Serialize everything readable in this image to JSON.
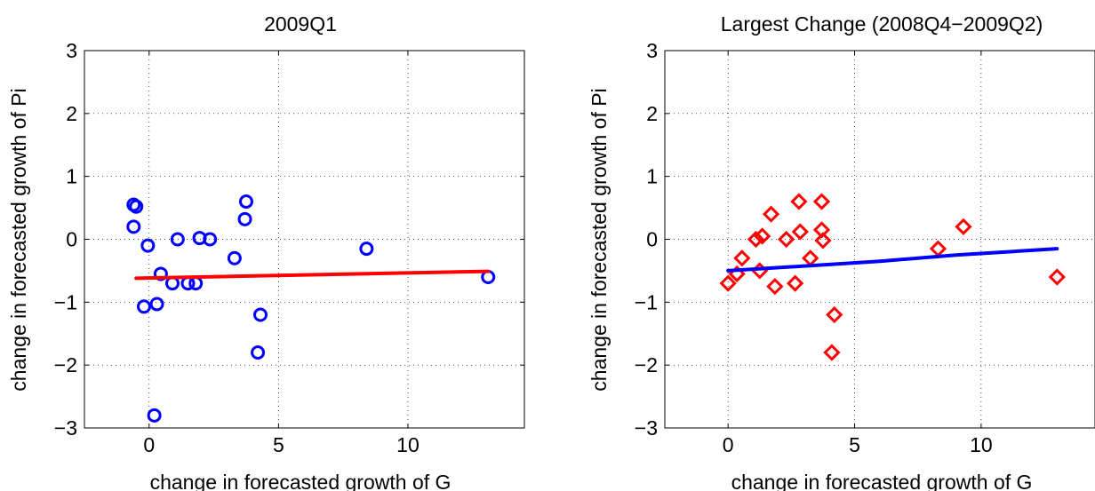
{
  "chart_data": [
    {
      "type": "scatter",
      "title": "2009Q1",
      "xlabel": "change in forecasted growth of G",
      "ylabel": "change in forecasted growth of Pi",
      "xlim": [
        -2.5,
        14.5
      ],
      "ylim": [
        -3,
        3
      ],
      "xticks": [
        0,
        5,
        10
      ],
      "yticks": [
        -3,
        -2,
        -1,
        0,
        1,
        2,
        3
      ],
      "xtick_labels": [
        "0",
        "5",
        "10"
      ],
      "ytick_labels": [
        "−3",
        "−2",
        "−1",
        "0",
        "1",
        "2",
        "3"
      ],
      "grid": true,
      "series": [
        {
          "marker": "circle",
          "color": "#0000FF",
          "points": [
            [
              -0.6,
              0.55
            ],
            [
              -0.5,
              0.52
            ],
            [
              -0.6,
              0.2
            ],
            [
              -0.2,
              -1.07
            ],
            [
              -0.05,
              -0.1
            ],
            [
              0.2,
              -2.8
            ],
            [
              0.3,
              -1.03
            ],
            [
              0.45,
              -0.55
            ],
            [
              0.9,
              -0.7
            ],
            [
              1.1,
              0.0
            ],
            [
              1.5,
              -0.7
            ],
            [
              1.8,
              -0.7
            ],
            [
              1.95,
              0.02
            ],
            [
              2.35,
              0.0
            ],
            [
              3.3,
              -0.3
            ],
            [
              3.7,
              0.32
            ],
            [
              3.75,
              0.6
            ],
            [
              4.2,
              -1.8
            ],
            [
              4.3,
              -1.2
            ],
            [
              8.4,
              -0.15
            ],
            [
              13.1,
              -0.6
            ]
          ]
        },
        {
          "marker": "line",
          "color": "#FF0000",
          "points": [
            [
              -0.5,
              -0.62
            ],
            [
              13.1,
              -0.51
            ]
          ]
        }
      ]
    },
    {
      "type": "scatter",
      "title": "Largest Change (2008Q4−2009Q2)",
      "xlabel": "change in forecasted growth of G",
      "ylabel": "change in forecasted growth of Pi",
      "xlim": [
        -2.5,
        14.5
      ],
      "ylim": [
        -3,
        3
      ],
      "xticks": [
        0,
        5,
        10
      ],
      "yticks": [
        -3,
        -2,
        -1,
        0,
        1,
        2,
        3
      ],
      "xtick_labels": [
        "0",
        "5",
        "10"
      ],
      "ytick_labels": [
        "−3",
        "−2",
        "−1",
        "0",
        "1",
        "2",
        "3"
      ],
      "grid": true,
      "series": [
        {
          "marker": "diamond",
          "color": "#FF0000",
          "points": [
            [
              0.0,
              -0.7
            ],
            [
              0.35,
              -0.55
            ],
            [
              0.55,
              -0.3
            ],
            [
              1.1,
              0.0
            ],
            [
              1.25,
              -0.5
            ],
            [
              1.35,
              0.05
            ],
            [
              1.7,
              0.4
            ],
            [
              1.85,
              -0.75
            ],
            [
              2.3,
              0.0
            ],
            [
              2.65,
              -0.7
            ],
            [
              2.8,
              0.6
            ],
            [
              2.85,
              0.12
            ],
            [
              3.25,
              -0.3
            ],
            [
              3.7,
              0.6
            ],
            [
              3.7,
              0.15
            ],
            [
              3.75,
              -0.02
            ],
            [
              4.1,
              -1.8
            ],
            [
              4.2,
              -1.2
            ],
            [
              8.3,
              -0.15
            ],
            [
              9.3,
              0.2
            ],
            [
              13.0,
              -0.6
            ]
          ]
        },
        {
          "marker": "line",
          "color": "#0000FF",
          "points": [
            [
              0.0,
              -0.5
            ],
            [
              2.0,
              -0.45
            ],
            [
              4.0,
              -0.4
            ],
            [
              6.0,
              -0.35
            ],
            [
              9.0,
              -0.25
            ],
            [
              13.0,
              -0.15
            ]
          ]
        }
      ]
    }
  ]
}
